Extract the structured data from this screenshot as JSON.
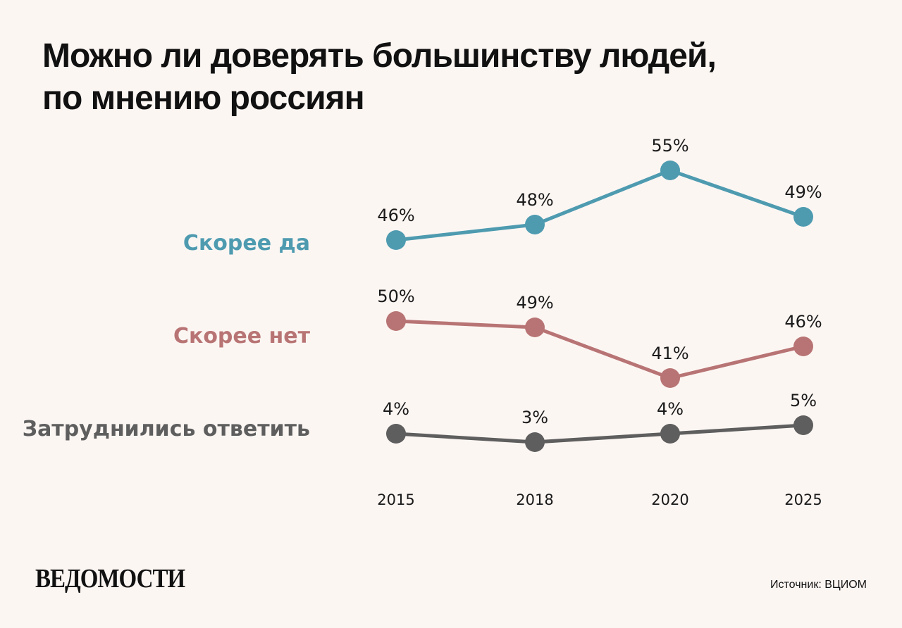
{
  "title": [
    "Можно ли доверять большинству людей,",
    "по мнению россиян"
  ],
  "brand": "ВЕДОМОСТИ",
  "source": "Источник: ВЦИОМ",
  "chart_data": {
    "type": "line",
    "x": [
      "2015",
      "2018",
      "2020",
      "2025"
    ],
    "series": [
      {
        "name": "Скорее да",
        "color": "#4e9bb0",
        "values": [
          46,
          48,
          55,
          49
        ],
        "labels": [
          "46%",
          "48%",
          "55%",
          "49%"
        ]
      },
      {
        "name": "Скорее нет",
        "color": "#b87474",
        "values": [
          50,
          49,
          41,
          46
        ],
        "labels": [
          "50%",
          "49%",
          "41%",
          "46%"
        ]
      },
      {
        "name": "Затруднились ответить",
        "color": "#5e5e5e",
        "values": [
          4,
          3,
          4,
          5
        ],
        "labels": [
          "4%",
          "3%",
          "4%",
          "5%"
        ]
      }
    ]
  }
}
